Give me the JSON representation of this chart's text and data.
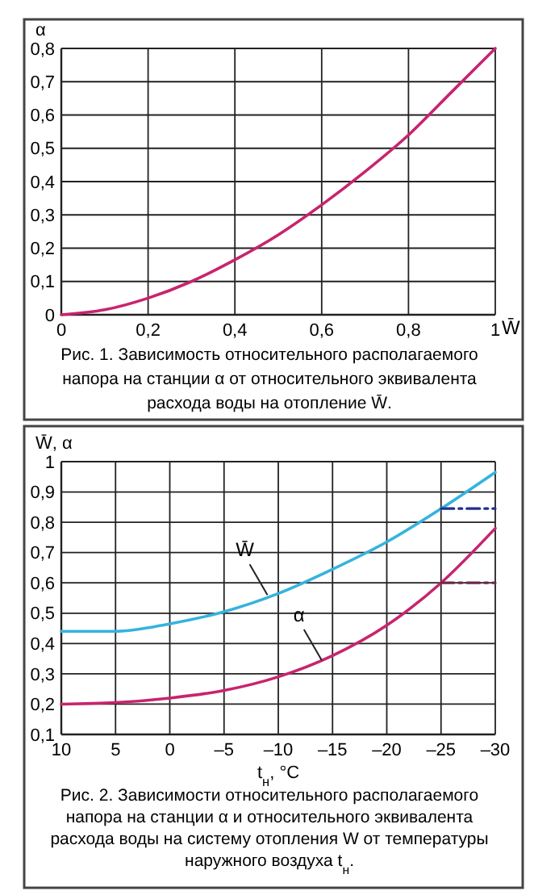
{
  "chart_data": [
    {
      "type": "line",
      "ylabel": "α",
      "xlabel": "W̄",
      "xlim": [
        0,
        1
      ],
      "xticks": [
        0,
        {
          "value": 0.2,
          "label": "0,2"
        },
        {
          "value": 0.4,
          "label": "0,4"
        },
        {
          "value": 0.6,
          "label": "0,6"
        },
        {
          "value": 0.8,
          "label": "0,8"
        },
        1
      ],
      "ylim": [
        0,
        0.8
      ],
      "yticks": [
        0,
        {
          "value": 0.1,
          "label": "0,1"
        },
        {
          "value": 0.2,
          "label": "0,2"
        },
        {
          "value": 0.3,
          "label": "0,3"
        },
        {
          "value": 0.4,
          "label": "0,4"
        },
        {
          "value": 0.5,
          "label": "0,5"
        },
        {
          "value": 0.6,
          "label": "0,6"
        },
        {
          "value": 0.7,
          "label": "0,7"
        },
        {
          "value": 0.8,
          "label": "0,8"
        }
      ],
      "grid": true,
      "marker": "none",
      "series": [
        {
          "color": "#c8246e",
          "x": [
            0,
            0.1,
            0.2,
            0.3,
            0.4,
            0.5,
            0.6,
            0.7,
            0.8,
            0.9,
            1
          ],
          "values": [
            0,
            0.015,
            0.05,
            0.1,
            0.165,
            0.24,
            0.33,
            0.43,
            0.54,
            0.67,
            0.8
          ]
        }
      ],
      "annotations": [
        "Рис. 1. Зависимость относительного располагаемого напора на станции α от относительного эквивалента расхода воды на отопление W̄."
      ]
    },
    {
      "type": "line",
      "ylabel": "W̄, α",
      "xlabel": "t$_{н}$, °C",
      "xlim": [
        10,
        -30
      ],
      "xticks": [
        10,
        5,
        0,
        {
          "value": -5,
          "label": "–5"
        },
        {
          "value": -10,
          "label": "–10"
        },
        {
          "value": -15,
          "label": "–15"
        },
        {
          "value": -20,
          "label": "–20"
        },
        {
          "value": -25,
          "label": "–25"
        },
        {
          "value": -30,
          "label": "–30"
        }
      ],
      "ylim": [
        0.1,
        1
      ],
      "yticks": [
        {
          "value": 0.1,
          "label": "0,1"
        },
        {
          "value": 0.2,
          "label": "0,2"
        },
        {
          "value": 0.3,
          "label": "0,3"
        },
        {
          "value": 0.4,
          "label": "0,4"
        },
        {
          "value": 0.5,
          "label": "0,5"
        },
        {
          "value": 0.6,
          "label": "0,6"
        },
        {
          "value": 0.7,
          "label": "0,7"
        },
        {
          "value": 0.8,
          "label": "0,8"
        },
        {
          "value": 0.9,
          "label": "0,9"
        },
        1
      ],
      "grid": true,
      "marker": "none",
      "series": [
        {
          "color": "#35b3dc",
          "x": [
            10,
            5,
            0,
            -5,
            -10,
            -15,
            -20,
            -25,
            -30
          ],
          "values": [
            0.44,
            0.44,
            0.465,
            0.505,
            0.565,
            0.645,
            0.735,
            0.845,
            0.965
          ]
        },
        {
          "color": "#c8246e",
          "x": [
            10,
            5,
            0,
            -5,
            -10,
            -15,
            -20,
            -25,
            -30
          ],
          "values": [
            0.2,
            0.205,
            0.22,
            0.245,
            0.29,
            0.36,
            0.46,
            0.6,
            0.78
          ]
        },
        {
          "color": "#1f2f8a",
          "line_style": "dashed",
          "x": [
            -25,
            -30
          ],
          "values": [
            0.845,
            0.845
          ]
        },
        {
          "color": "#6a2a4a",
          "line_style": "dashed",
          "x": [
            -25,
            -30
          ],
          "values": [
            0.6,
            0.6
          ]
        }
      ],
      "annotations": [
        {
          "text": "W̄",
          "x": -9,
          "y": 0.56
        },
        {
          "text": "α",
          "x": -14,
          "y": 0.345
        },
        "Рис. 2. Зависимости относительного располагаемого напора на станции α и относительного эквивалента расхода воды на систему отопления W от температуры наружного воздуха t$_{н}$."
      ]
    }
  ]
}
